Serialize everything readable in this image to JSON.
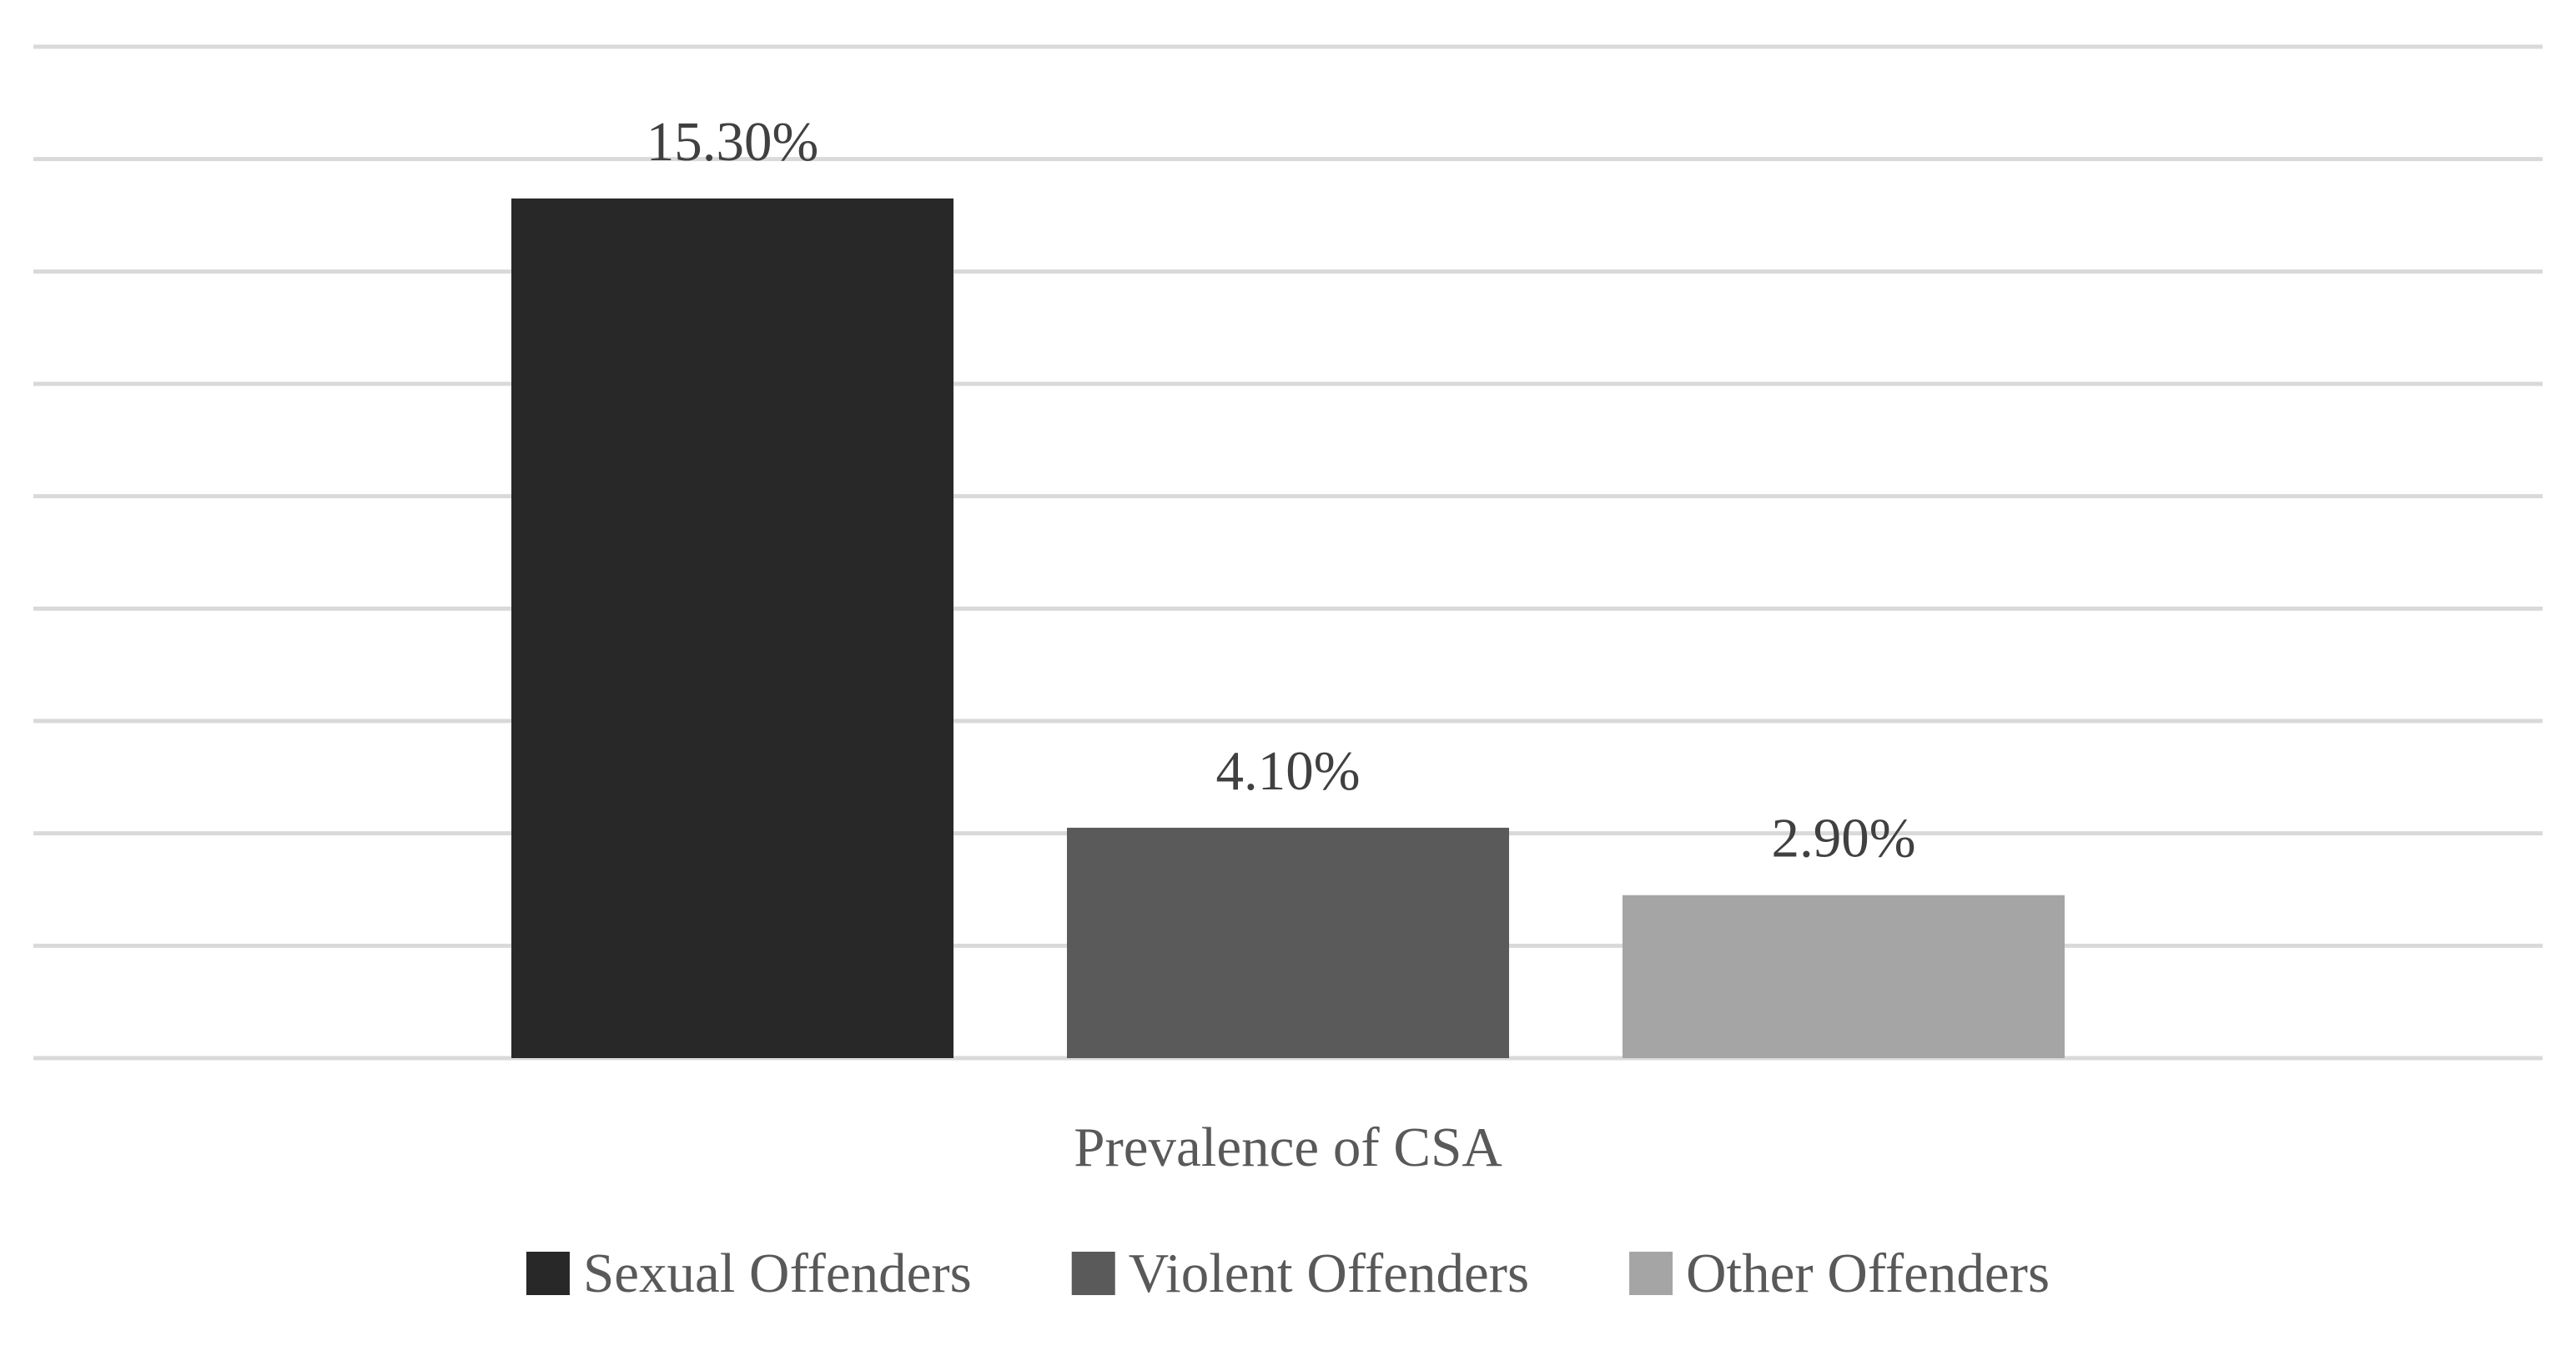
{
  "chart_data": {
    "type": "bar",
    "title": "",
    "xlabel": "Prevalence of CSA",
    "ylabel": "",
    "categories": [
      "Prevalence of CSA"
    ],
    "ylim": [
      0,
      18
    ],
    "grid": true,
    "legend_position": "bottom",
    "series": [
      {
        "name": "Sexual Offenders",
        "values": [
          15.3
        ],
        "data_label": "15.30%",
        "color": "#282828"
      },
      {
        "name": "Violent Offenders",
        "values": [
          4.1
        ],
        "data_label": "4.10%",
        "color": "#5a5a5a"
      },
      {
        "name": "Other Offenders",
        "values": [
          2.9
        ],
        "data_label": "2.90%",
        "color": "#a5a5a5"
      }
    ],
    "colors": {
      "gridline": "#d9d9d9",
      "label_text": "#404040",
      "axis_text": "#595959"
    }
  }
}
